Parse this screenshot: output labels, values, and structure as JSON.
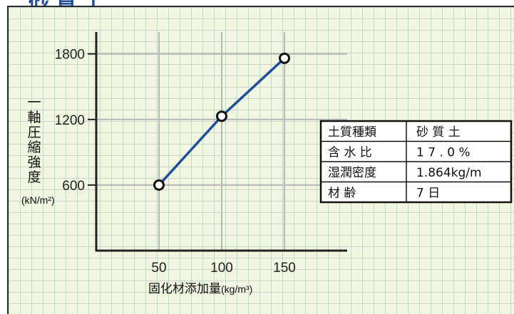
{
  "page": {
    "title": "砂質土"
  },
  "chart_data": {
    "type": "line",
    "x": [
      50,
      100,
      150
    ],
    "series": [
      {
        "values": [
          600,
          1230,
          1760
        ],
        "color": "#1f4f9a"
      }
    ],
    "x_ticks": [
      "50",
      "100",
      "150"
    ],
    "y_ticks": [
      "600",
      "1200",
      "1800"
    ],
    "xlim": [
      0,
      200
    ],
    "ylim": [
      0,
      2000
    ],
    "xlabel": "固化材添加量",
    "xlabel_unit": "(kg/m³)",
    "ylabel_chars": [
      "一",
      "軸",
      "圧",
      "縮",
      "強",
      "度"
    ],
    "ylabel_unit": "(kN/m²)",
    "grid": true
  },
  "info_table": {
    "rows": [
      {
        "label": "土質種類",
        "value": "砂 質 土"
      },
      {
        "label": "含 水 比",
        "value": "1 7 . 0 %"
      },
      {
        "label": "湿潤密度",
        "value": "1.864kg/m"
      },
      {
        "label": "材    齢",
        "value": "7       日"
      }
    ]
  }
}
